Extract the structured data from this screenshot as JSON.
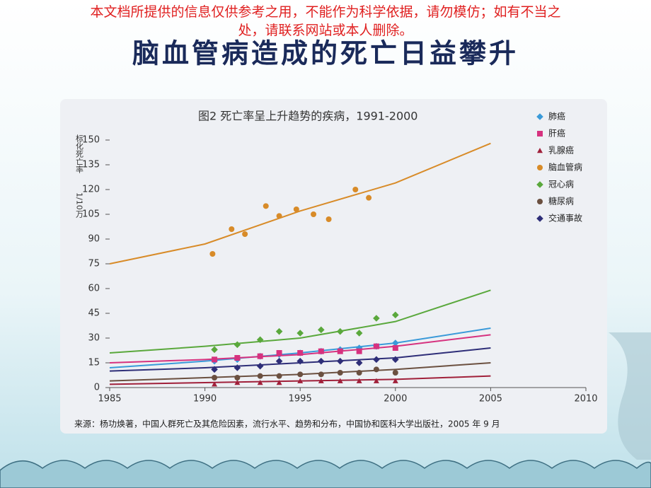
{
  "notice": [
    "本文档所提供的信息仅供参考之用，不能作为科学依据，请勿模仿；如有不当之",
    "处，请联系网站或本人删除。"
  ],
  "slide_title": "脑血管病造成的死亡日益攀升",
  "chart_data": {
    "type": "scatter",
    "title": "图2   死亡率呈上升趋势的疾病，1991-2000",
    "ylabel": [
      "标化死亡率",
      "1/10万"
    ],
    "source": "来源：杨功焕著，中国人群死亡及其危险因素，流行水平、趋势和分布，中国协和医科大学出版社，2005 年 9 月",
    "xlim": [
      1985,
      2010
    ],
    "xticks": [
      1985,
      1990,
      1995,
      2000,
      2005,
      2010
    ],
    "ylim": [
      0,
      150
    ],
    "yticks": [
      0,
      15,
      30,
      45,
      60,
      75,
      90,
      105,
      120,
      135,
      150
    ],
    "trend_x": [
      1985,
      1990,
      1995,
      2000,
      2005
    ],
    "series": [
      {
        "name": "肺癌",
        "color": "#3a9ad9",
        "marker": "diamond",
        "x": [
          1990.5,
          1991.7,
          1992.9,
          1993.9,
          1995,
          1996.1,
          1997.1,
          1998.1,
          1999,
          2000
        ],
        "values": [
          16,
          17,
          19,
          20,
          21,
          22,
          23,
          24,
          25,
          27
        ],
        "trend": [
          12,
          16,
          21,
          27,
          36
        ]
      },
      {
        "name": "肝癌",
        "color": "#d6327f",
        "marker": "square",
        "x": [
          1990.5,
          1991.7,
          1992.9,
          1993.9,
          1995,
          1996.1,
          1997.1,
          1998.1,
          1999,
          2000
        ],
        "values": [
          17,
          18,
          19,
          21,
          21,
          22,
          22,
          22,
          25,
          24
        ],
        "trend": [
          15,
          17,
          20,
          25,
          32
        ]
      },
      {
        "name": "乳腺癌",
        "color": "#a0203a",
        "marker": "triangle",
        "x": [
          1990.5,
          1991.7,
          1992.9,
          1993.9,
          1995,
          1996.1,
          1997.1,
          1998.1,
          1999,
          2000
        ],
        "values": [
          2,
          3,
          3,
          3,
          4,
          4,
          4,
          4,
          4,
          4
        ],
        "trend": [
          2,
          3,
          4,
          5,
          7
        ]
      },
      {
        "name": "脑血管病",
        "color": "#d88b28",
        "marker": "circle",
        "x": [
          1990.4,
          1991.4,
          1992.1,
          1993.2,
          1993.9,
          1994.8,
          1995.7,
          1996.5,
          1997.9,
          1998.6
        ],
        "values": [
          81,
          96,
          93,
          110,
          104,
          108,
          105,
          102,
          120,
          115
        ],
        "trend": [
          75,
          87,
          107,
          124,
          148
        ]
      },
      {
        "name": "冠心病",
        "color": "#5aa83c",
        "marker": "diamond",
        "x": [
          1990.5,
          1991.7,
          1992.9,
          1993.9,
          1995,
          1996.1,
          1997.1,
          1998.1,
          1999,
          2000
        ],
        "values": [
          23,
          26,
          29,
          34,
          33,
          35,
          34,
          33,
          42,
          44
        ],
        "trend": [
          21,
          25,
          30,
          40,
          59
        ]
      },
      {
        "name": "糖尿病",
        "color": "#6b5040",
        "marker": "circle",
        "x": [
          1990.5,
          1991.7,
          1992.9,
          1993.9,
          1995,
          1996.1,
          1997.1,
          1998.1,
          1999,
          2000
        ],
        "values": [
          6,
          6,
          7,
          7,
          8,
          8,
          9,
          9,
          11,
          9
        ],
        "trend": [
          4,
          6,
          8,
          11,
          15
        ]
      },
      {
        "name": "交通事故",
        "color": "#2e2e78",
        "marker": "diamond",
        "x": [
          1990.5,
          1991.7,
          1992.9,
          1993.9,
          1995,
          1996.1,
          1997.1,
          1998.1,
          1999,
          2000
        ],
        "values": [
          11,
          12,
          13,
          16,
          16,
          16,
          16,
          15,
          17,
          17
        ],
        "trend": [
          10,
          12,
          15,
          18,
          24
        ]
      }
    ]
  }
}
